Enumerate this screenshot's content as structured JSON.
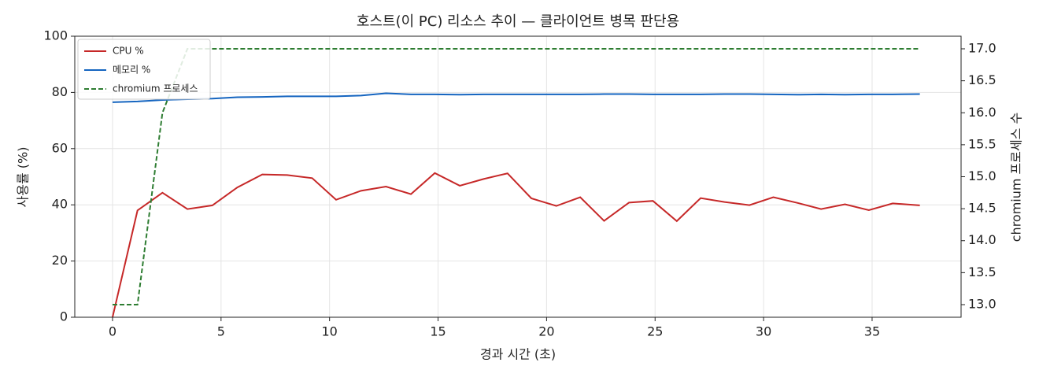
{
  "chart_data": {
    "type": "line",
    "title": "호스트(이 PC) 리소스 추이 — 클라이언트 병목 판단용",
    "xlabel": "경과 시간 (초)",
    "ylabel": "사용률 (%)",
    "y2label": "chromium 프로세스 수",
    "x": [
      0,
      1.15,
      2.3,
      3.45,
      4.6,
      5.75,
      6.9,
      8.05,
      9.2,
      10.3,
      11.45,
      12.6,
      13.75,
      14.85,
      16.0,
      17.1,
      18.2,
      19.3,
      20.45,
      21.55,
      22.65,
      23.8,
      24.9,
      26.0,
      27.1,
      28.2,
      29.35,
      30.45,
      31.55,
      32.65,
      33.75,
      34.85,
      35.95,
      37.2
    ],
    "series": [
      {
        "name": "CPU %",
        "color": "#c62828",
        "axis": "y",
        "dash": false,
        "values": [
          0,
          38,
          44.3,
          38.5,
          39.8,
          46.2,
          50.8,
          50.6,
          49.5,
          41.8,
          45,
          46.5,
          43.8,
          51.3,
          46.8,
          49.2,
          51.2,
          42.3,
          39.6,
          42.7,
          34.3,
          40.8,
          41.4,
          34.2,
          42.4,
          41,
          39.9,
          42.7,
          40.7,
          38.5,
          40.2,
          38.1,
          40.5,
          39.8
        ]
      },
      {
        "name": "메모리 %",
        "color": "#1565c0",
        "axis": "y",
        "dash": false,
        "values": [
          76.5,
          76.8,
          77.3,
          77.6,
          77.8,
          78.3,
          78.4,
          78.6,
          78.6,
          78.6,
          78.9,
          79.7,
          79.3,
          79.3,
          79.2,
          79.3,
          79.3,
          79.3,
          79.3,
          79.3,
          79.4,
          79.4,
          79.3,
          79.3,
          79.3,
          79.4,
          79.4,
          79.3,
          79.2,
          79.3,
          79.2,
          79.3,
          79.3,
          79.4
        ]
      },
      {
        "name": "chromium 프로세스",
        "color": "#2e7d32",
        "axis": "y2",
        "dash": true,
        "values": [
          13,
          13,
          16,
          17,
          17,
          17,
          17,
          17,
          17,
          17,
          17,
          17,
          17,
          17,
          17,
          17,
          17,
          17,
          17,
          17,
          17,
          17,
          17,
          17,
          17,
          17,
          17,
          17,
          17,
          17,
          17,
          17,
          17,
          17
        ]
      }
    ],
    "xlim": [
      -1.74,
      39.1
    ],
    "xticks": [
      0,
      5,
      10,
      15,
      20,
      25,
      30,
      35
    ],
    "ylim": [
      0,
      100
    ],
    "yticks": [
      0,
      20,
      40,
      60,
      80,
      100
    ],
    "y2lim": [
      12.803,
      17.197
    ],
    "y2ticks": [
      {
        "value": 13,
        "label": "13.0"
      },
      13.5,
      {
        "value": 14,
        "label": "14.0"
      },
      14.5,
      {
        "value": 15,
        "label": "15.0"
      },
      15.5,
      {
        "value": 16,
        "label": "16.0"
      },
      16.5,
      {
        "value": 17,
        "label": "17.0"
      }
    ],
    "grid": true,
    "legend": "upper left"
  }
}
